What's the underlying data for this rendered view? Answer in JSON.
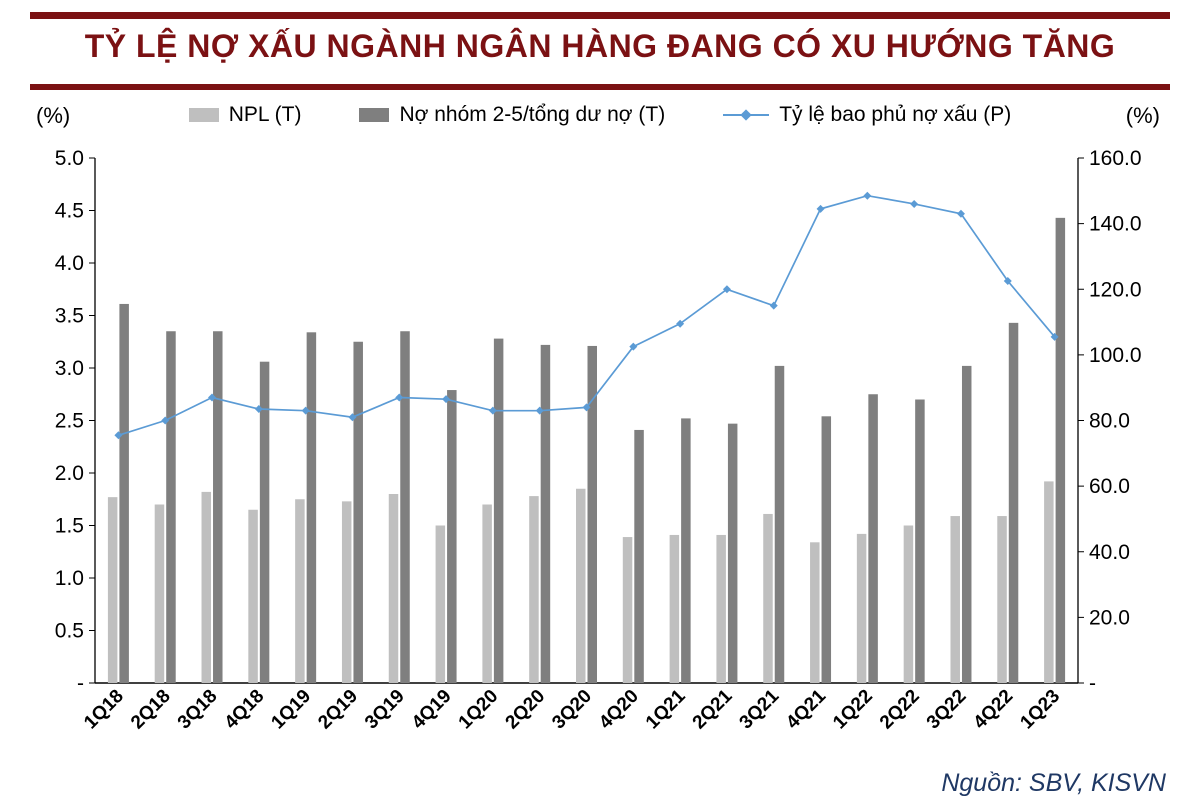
{
  "title": "TỶ LỆ NỢ XẤU NGÀNH NGÂN HÀNG ĐANG CÓ XU HƯỚNG TĂNG",
  "axis_unit_left": "(%)",
  "axis_unit_right": "(%)",
  "source": "Nguồn: SBV, KISVN",
  "colors": {
    "title": "#7B1113",
    "rule": "#7B1113",
    "npl_bar": "#BFBFBF",
    "group_bar": "#7F7F7F",
    "line": "#5B9BD5",
    "source_text": "#1F3864",
    "axis_text": "#000000"
  },
  "legend": [
    {
      "label": "NPL (T)",
      "type": "bar",
      "color": "#BFBFBF"
    },
    {
      "label": "Nợ nhóm 2-5/tổng dư nợ (T)",
      "type": "bar",
      "color": "#7F7F7F"
    },
    {
      "label": "Tỷ lệ bao phủ nợ xấu (P)",
      "type": "line",
      "color": "#5B9BD5"
    }
  ],
  "chart_data": {
    "type": "combo-bar-line",
    "title": "TỶ LỆ NỢ XẤU NGÀNH NGÂN HÀNG ĐANG CÓ XU HƯỚNG TĂNG",
    "categories": [
      "1Q18",
      "2Q18",
      "3Q18",
      "4Q18",
      "1Q19",
      "2Q19",
      "3Q19",
      "4Q19",
      "1Q20",
      "2Q20",
      "3Q20",
      "4Q20",
      "1Q21",
      "2Q21",
      "3Q21",
      "4Q21",
      "1Q22",
      "2Q22",
      "3Q22",
      "4Q22",
      "1Q23"
    ],
    "series": [
      {
        "name": "NPL (T)",
        "type": "bar",
        "axis": "left",
        "color": "#BFBFBF",
        "values": [
          1.77,
          1.7,
          1.82,
          1.65,
          1.75,
          1.73,
          1.8,
          1.5,
          1.7,
          1.78,
          1.85,
          1.39,
          1.41,
          1.41,
          1.61,
          1.34,
          1.42,
          1.5,
          1.59,
          1.59,
          1.92
        ]
      },
      {
        "name": "Nợ nhóm 2-5/tổng dư nợ (T)",
        "type": "bar",
        "axis": "left",
        "color": "#7F7F7F",
        "values": [
          3.61,
          3.35,
          3.35,
          3.06,
          3.34,
          3.25,
          3.35,
          2.79,
          3.28,
          3.22,
          3.21,
          2.41,
          2.52,
          2.47,
          3.02,
          2.54,
          2.75,
          2.7,
          3.02,
          3.43,
          4.43
        ]
      },
      {
        "name": "Tỷ lệ bao phủ nợ xấu (P)",
        "type": "line",
        "axis": "right",
        "color": "#5B9BD5",
        "values": [
          75.5,
          80.0,
          87.0,
          83.5,
          83.0,
          81.0,
          87.0,
          86.5,
          83.0,
          83.0,
          84.0,
          102.5,
          109.5,
          120.0,
          115.0,
          144.5,
          148.5,
          146.0,
          143.0,
          122.5,
          105.5
        ]
      }
    ],
    "left_axis": {
      "min": 0,
      "max": 5,
      "step": 0.5,
      "zero_label": "-",
      "unit": "(%)"
    },
    "right_axis": {
      "min": 0,
      "max": 160,
      "step": 20,
      "zero_label": "-",
      "unit": "(%)"
    },
    "grid": false,
    "legend_position": "top"
  }
}
